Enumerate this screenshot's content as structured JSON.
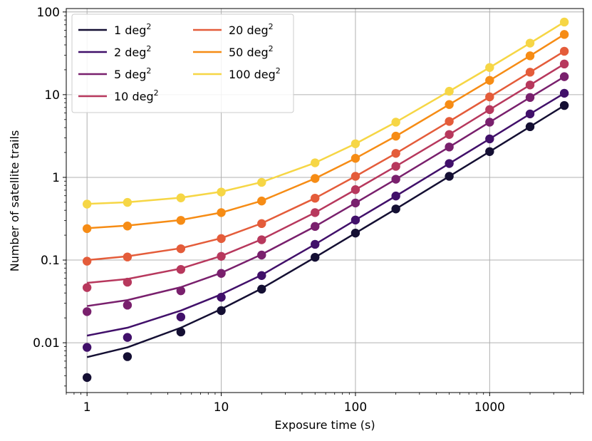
{
  "chart_data": {
    "type": "line",
    "title": "",
    "xlabel": "Exposure time (s)",
    "ylabel": "Number of satellite trails",
    "xscale": "log",
    "yscale": "log",
    "xlim": [
      0.7,
      5000
    ],
    "ylim": [
      0.0025,
      110
    ],
    "grid": true,
    "legend_position": "top-left",
    "legend_columns": 2,
    "xticks": [
      {
        "value": 1,
        "label": "1"
      },
      {
        "value": 10,
        "label": "10"
      },
      {
        "value": 100,
        "label": "100"
      },
      {
        "value": 1000,
        "label": "1000"
      }
    ],
    "yticks": [
      {
        "value": 0.01,
        "label": "0.01"
      },
      {
        "value": 0.1,
        "label": "0.1"
      },
      {
        "value": 1,
        "label": "1"
      },
      {
        "value": 10,
        "label": "10"
      },
      {
        "value": 100,
        "label": "100"
      }
    ],
    "x": [
      1,
      2,
      5,
      10,
      20,
      50,
      100,
      200,
      500,
      1000,
      2000,
      3600
    ],
    "series": [
      {
        "name": "1 deg",
        "superscript": "2",
        "color": "#140f33",
        "line": [
          0.0067,
          0.0088,
          0.0152,
          0.0255,
          0.0453,
          0.108,
          0.212,
          0.415,
          1.03,
          2.05,
          4.1,
          7.4
        ],
        "points": [
          0.0038,
          0.0068,
          0.0135,
          0.0245,
          0.0445,
          0.108,
          0.212,
          0.415,
          1.03,
          2.05,
          4.1,
          7.4
        ]
      },
      {
        "name": "2 deg",
        "superscript": "2",
        "color": "#41106a",
        "line": [
          0.0122,
          0.0152,
          0.0245,
          0.0385,
          0.066,
          0.155,
          0.305,
          0.595,
          1.47,
          2.92,
          5.85,
          10.4
        ],
        "points": [
          0.0088,
          0.0116,
          0.0205,
          0.0355,
          0.065,
          0.155,
          0.305,
          0.595,
          1.47,
          2.92,
          5.85,
          10.4
        ]
      },
      {
        "name": "5 deg",
        "superscript": "2",
        "color": "#79206d",
        "line": [
          0.0278,
          0.0328,
          0.047,
          0.07,
          0.117,
          0.255,
          0.49,
          0.95,
          2.33,
          4.65,
          9.25,
          16.5
        ],
        "points": [
          0.0238,
          0.0285,
          0.0425,
          0.069,
          0.115,
          0.255,
          0.49,
          0.95,
          2.33,
          4.65,
          9.25,
          16.5
        ]
      },
      {
        "name": "10 deg",
        "superscript": "2",
        "color": "#b7385d",
        "line": [
          0.053,
          0.059,
          0.079,
          0.112,
          0.178,
          0.375,
          0.71,
          1.36,
          3.3,
          6.6,
          13.1,
          23.5
        ],
        "points": [
          0.0465,
          0.054,
          0.077,
          0.111,
          0.176,
          0.375,
          0.71,
          1.36,
          3.3,
          6.6,
          13.1,
          23.5
        ]
      },
      {
        "name": "20 deg",
        "superscript": "2",
        "color": "#e45c3a",
        "line": [
          0.1,
          0.111,
          0.139,
          0.184,
          0.278,
          0.56,
          1.03,
          1.95,
          4.75,
          9.4,
          18.7,
          33.5
        ],
        "points": [
          0.097,
          0.109,
          0.137,
          0.182,
          0.276,
          0.56,
          1.03,
          1.95,
          4.75,
          9.4,
          18.7,
          33.5
        ]
      },
      {
        "name": "50 deg",
        "superscript": "2",
        "color": "#f68c15",
        "line": [
          0.243,
          0.261,
          0.305,
          0.375,
          0.52,
          0.97,
          1.7,
          3.15,
          7.6,
          14.9,
          29.5,
          53.5
        ],
        "points": [
          0.24,
          0.258,
          0.302,
          0.375,
          0.518,
          0.97,
          1.7,
          3.15,
          7.6,
          14.9,
          29.5,
          53.5
        ]
      },
      {
        "name": "100 deg",
        "superscript": "2",
        "color": "#f6d645",
        "line": [
          0.478,
          0.5,
          0.568,
          0.67,
          0.875,
          1.5,
          2.55,
          4.65,
          11.0,
          21.3,
          42.0,
          75.5
        ],
        "points": [
          0.475,
          0.498,
          0.565,
          0.665,
          0.87,
          1.5,
          2.55,
          4.65,
          11.0,
          21.3,
          42.0,
          75.5
        ]
      }
    ]
  }
}
